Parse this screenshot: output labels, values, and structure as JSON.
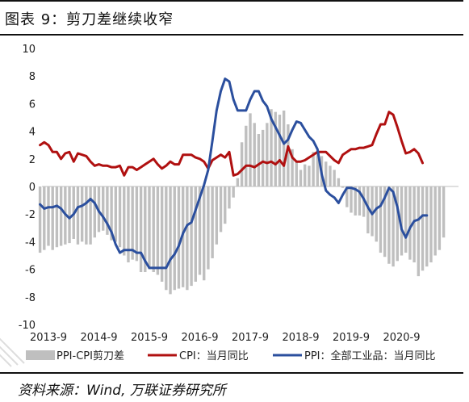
{
  "header": {
    "title": "图表 9：剪刀差继续收窄"
  },
  "footer": {
    "source": "资料来源：Wind, 万联证券研究所"
  },
  "chart_data": {
    "type": "line",
    "x_ticks": [
      "2013-9",
      "2014-9",
      "2015-9",
      "2016-9",
      "2017-9",
      "2018-9",
      "2019-9",
      "2020-9"
    ],
    "y_ticks": [
      10,
      8,
      6,
      4,
      2,
      0,
      -2,
      -4,
      -6,
      -8,
      -10
    ],
    "ylim": [
      -10,
      10
    ],
    "start_month": "2013-07",
    "grid": false,
    "legend_position": "bottom",
    "colors": {
      "spread": "#bfbfbf",
      "cpi": "#b01010",
      "ppi": "#2b4f9e"
    },
    "series": [
      {
        "name": "PPI-CPI剪刀差",
        "kind": "bar",
        "values": [
          -4.8,
          -4.6,
          -4.3,
          -4.6,
          -4.4,
          -4.3,
          -4.2,
          -4.1,
          -3.8,
          -4.2,
          -4.0,
          -4.2,
          -4.2,
          -3.7,
          -3.3,
          -3.2,
          -3.5,
          -3.9,
          -4.0,
          -4.4,
          -5.0,
          -5.5,
          -5.3,
          -5.4,
          -6.2,
          -6.2,
          -6.0,
          -6.2,
          -6.4,
          -6.9,
          -7.5,
          -7.8,
          -7.5,
          -7.4,
          -7.3,
          -7.5,
          -7.2,
          -6.9,
          -6.4,
          -6.8,
          -6.0,
          -5.2,
          -4.2,
          -3.3,
          -2.7,
          -1.6,
          -0.8,
          0.6,
          3.2,
          4.4,
          5.3,
          4.6,
          3.8,
          4.1,
          4.6,
          5.6,
          5.4,
          5.2,
          5.5,
          4.5,
          2.7,
          1.8,
          1.2,
          1.6,
          1.5,
          2.5,
          2.6,
          2.2,
          1.8,
          1.5,
          1.2,
          0.6,
          -0.1,
          -1.5,
          -1.9,
          -2.1,
          -2.1,
          -2.2,
          -3.4,
          -3.6,
          -4.0,
          -4.8,
          -5.1,
          -5.6,
          -5.8,
          -5.4,
          -5.0,
          -4.8,
          -5.3,
          -5.5,
          -6.5,
          -6.1,
          -5.8,
          -5.5,
          -5.0,
          -4.6,
          -3.7
        ]
      },
      {
        "name": "CPI：当月同比",
        "kind": "line",
        "values": [
          3.0,
          3.2,
          3.0,
          2.5,
          2.5,
          2.0,
          2.4,
          2.5,
          1.8,
          2.4,
          2.3,
          2.2,
          1.8,
          1.5,
          1.6,
          1.5,
          1.5,
          1.4,
          1.4,
          1.5,
          0.8,
          1.4,
          1.4,
          1.2,
          1.4,
          1.6,
          1.8,
          2.0,
          1.6,
          1.3,
          1.5,
          1.8,
          1.6,
          1.6,
          2.3,
          2.3,
          2.3,
          2.1,
          2.0,
          1.8,
          1.3,
          1.9,
          2.1,
          2.3,
          2.1,
          2.5,
          0.8,
          0.9,
          1.2,
          1.5,
          1.5,
          1.4,
          1.6,
          1.8,
          1.7,
          1.8,
          1.6,
          1.9,
          1.5,
          2.9,
          2.1,
          1.8,
          1.8,
          1.9,
          2.1,
          2.3,
          2.5,
          2.5,
          2.5,
          2.2,
          1.9,
          1.7,
          2.3,
          2.5,
          2.7,
          2.7,
          2.8,
          2.8,
          2.9,
          3.0,
          3.8,
          4.5,
          4.5,
          5.4,
          5.2,
          4.3,
          3.3,
          2.4,
          2.5,
          2.7,
          2.4,
          1.7
        ]
      },
      {
        "name": "PPI：全部工业品：当月同比",
        "kind": "line",
        "values": [
          -1.3,
          -1.6,
          -1.5,
          -1.5,
          -1.4,
          -1.6,
          -2.0,
          -2.3,
          -2.0,
          -1.5,
          -1.4,
          -1.2,
          -0.9,
          -1.2,
          -1.8,
          -2.2,
          -2.7,
          -3.3,
          -4.2,
          -4.8,
          -4.6,
          -4.6,
          -4.6,
          -4.8,
          -4.8,
          -5.4,
          -5.9,
          -5.9,
          -5.9,
          -5.9,
          -5.9,
          -5.3,
          -4.9,
          -4.3,
          -3.4,
          -2.8,
          -2.6,
          -1.7,
          -0.8,
          0.1,
          1.2,
          3.3,
          5.5,
          6.9,
          7.8,
          7.6,
          6.3,
          5.5,
          5.5,
          5.5,
          6.3,
          6.9,
          6.9,
          6.2,
          5.8,
          4.9,
          4.3,
          3.7,
          3.1,
          3.4,
          4.1,
          4.7,
          4.6,
          4.1,
          3.6,
          3.3,
          2.7,
          0.9,
          -0.3,
          -0.6,
          -0.8,
          -1.2,
          -0.6,
          -0.1,
          -0.1,
          -0.2,
          -0.4,
          -0.9,
          -1.5,
          -2.0,
          -1.6,
          -1.4,
          -0.8,
          -0.1,
          -0.4,
          -1.5,
          -3.1,
          -3.7,
          -3.0,
          -2.5,
          -2.4,
          -2.1,
          -2.1
        ]
      }
    ]
  }
}
